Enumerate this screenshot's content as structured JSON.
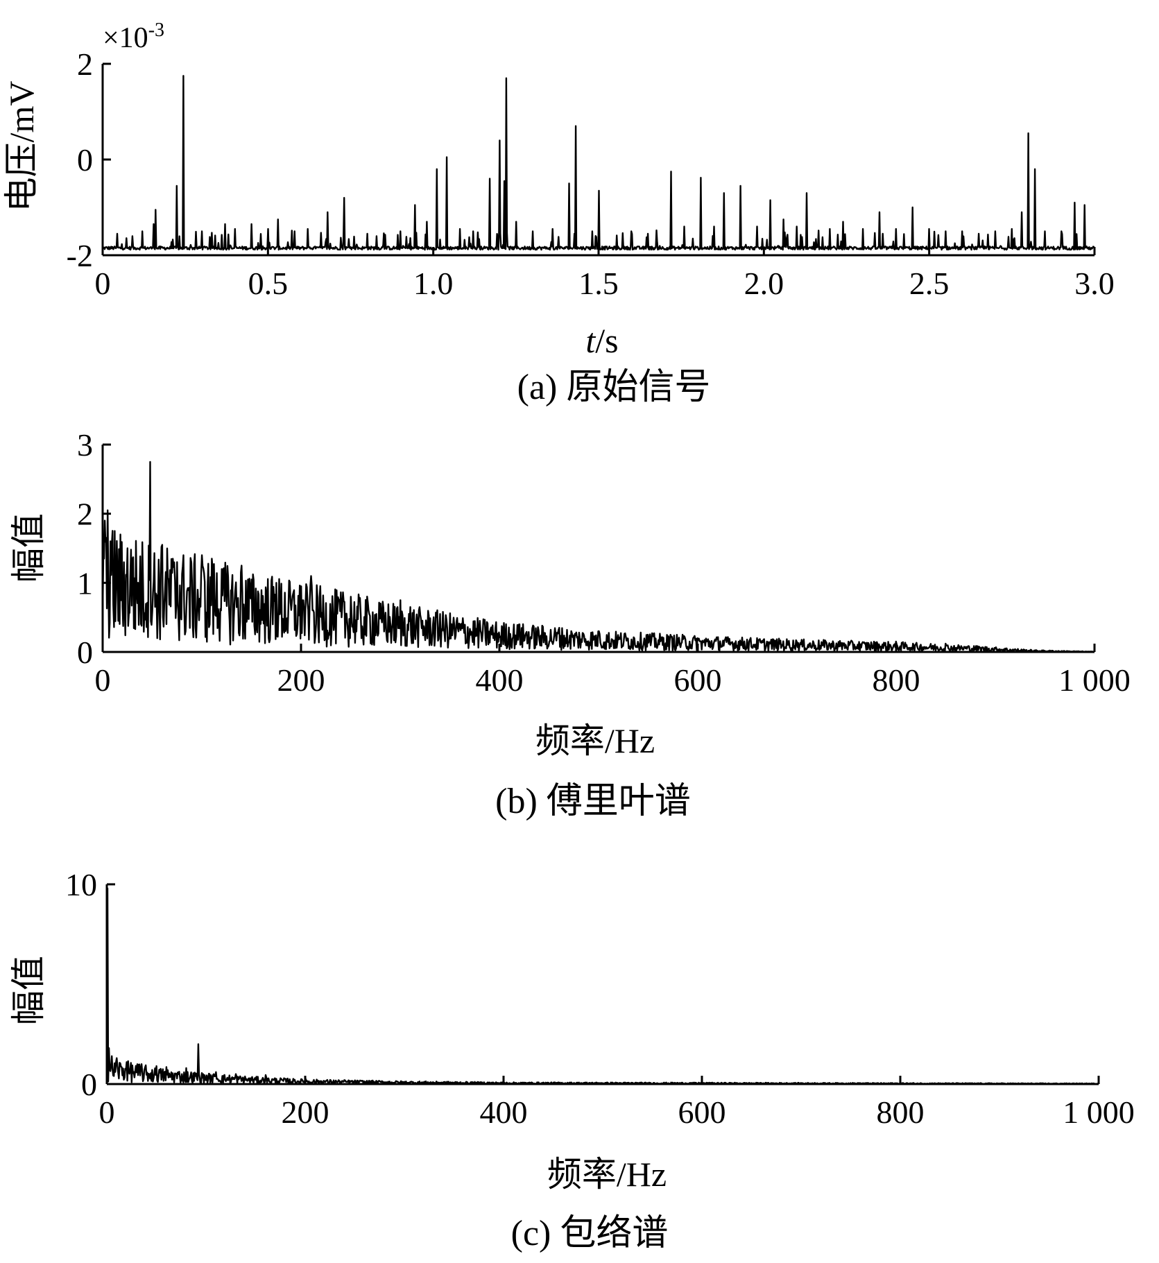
{
  "chart_data": [
    {
      "id": "a",
      "type": "line",
      "caption": "(a) 原始信号",
      "xlabel_italic": "t",
      "xlabel_rest": "/s",
      "ylabel": "电压/mV",
      "y_multiplier_base": "×10",
      "y_multiplier_exp": "-3",
      "xlim": [
        0,
        3.0
      ],
      "ylim": [
        -2,
        2
      ],
      "xticks": [
        0,
        0.5,
        1.0,
        1.5,
        2.0,
        2.5,
        3.0
      ],
      "xtick_labels": [
        "0",
        "0.5",
        "1.0",
        "1.5",
        "2.0",
        "2.5",
        "3.0"
      ],
      "yticks": [
        -2,
        0,
        2
      ],
      "ytick_labels": [
        "-2",
        "0",
        "2"
      ],
      "baseline": -1.85,
      "noise": 0.07,
      "peaks": [
        [
          0.045,
          -1.55
        ],
        [
          0.09,
          -1.6
        ],
        [
          0.12,
          -1.5
        ],
        [
          0.155,
          -1.35
        ],
        [
          0.16,
          -1.05
        ],
        [
          0.225,
          -0.55
        ],
        [
          0.245,
          1.75
        ],
        [
          0.3,
          -1.5
        ],
        [
          0.37,
          -1.35
        ],
        [
          0.4,
          -1.45
        ],
        [
          0.45,
          -1.35
        ],
        [
          0.5,
          -1.45
        ],
        [
          0.53,
          -1.25
        ],
        [
          0.58,
          -1.5
        ],
        [
          0.62,
          -1.45
        ],
        [
          0.68,
          -1.1
        ],
        [
          0.73,
          -0.8
        ],
        [
          0.8,
          -1.55
        ],
        [
          0.9,
          -1.5
        ],
        [
          0.945,
          -0.95
        ],
        [
          0.98,
          -1.3
        ],
        [
          1.01,
          -0.2
        ],
        [
          1.04,
          0.05
        ],
        [
          1.08,
          -1.45
        ],
        [
          1.12,
          -1.5
        ],
        [
          1.17,
          -0.4
        ],
        [
          1.2,
          0.4
        ],
        [
          1.215,
          -0.45
        ],
        [
          1.22,
          1.7
        ],
        [
          1.25,
          -1.3
        ],
        [
          1.3,
          -1.5
        ],
        [
          1.36,
          -1.45
        ],
        [
          1.41,
          -0.5
        ],
        [
          1.43,
          0.7
        ],
        [
          1.48,
          -1.5
        ],
        [
          1.5,
          -0.65
        ],
        [
          1.6,
          -1.5
        ],
        [
          1.65,
          -1.55
        ],
        [
          1.72,
          -0.25
        ],
        [
          1.76,
          -1.4
        ],
        [
          1.81,
          -0.38
        ],
        [
          1.85,
          -1.4
        ],
        [
          1.88,
          -0.7
        ],
        [
          1.93,
          -0.55
        ],
        [
          1.98,
          -1.4
        ],
        [
          2.02,
          -0.85
        ],
        [
          2.06,
          -1.25
        ],
        [
          2.1,
          -1.4
        ],
        [
          2.13,
          -0.7
        ],
        [
          2.2,
          -1.45
        ],
        [
          2.24,
          -1.3
        ],
        [
          2.3,
          -1.45
        ],
        [
          2.35,
          -1.1
        ],
        [
          2.4,
          -1.45
        ],
        [
          2.45,
          -1.0
        ],
        [
          2.5,
          -1.45
        ],
        [
          2.55,
          -1.5
        ],
        [
          2.6,
          -1.5
        ],
        [
          2.65,
          -1.55
        ],
        [
          2.7,
          -1.5
        ],
        [
          2.75,
          -1.45
        ],
        [
          2.78,
          -1.1
        ],
        [
          2.8,
          0.55
        ],
        [
          2.82,
          -0.2
        ],
        [
          2.85,
          -1.5
        ],
        [
          2.9,
          -1.5
        ],
        [
          2.94,
          -0.9
        ],
        [
          2.97,
          -0.95
        ]
      ]
    },
    {
      "id": "b",
      "type": "line",
      "caption": "(b) 傅里叶谱",
      "xlabel": "频率/Hz",
      "ylabel": "幅值",
      "xlim": [
        0,
        1000
      ],
      "ylim": [
        0,
        3
      ],
      "xticks": [
        0,
        200,
        400,
        600,
        800,
        1000
      ],
      "xtick_labels": [
        "0",
        "200",
        "400",
        "600",
        "800",
        "1 000"
      ],
      "yticks": [
        0,
        1,
        2,
        3
      ],
      "ytick_labels": [
        "0",
        "1",
        "2",
        "3"
      ],
      "envelope": [
        [
          0,
          1.0
        ],
        [
          100,
          0.75
        ],
        [
          200,
          0.55
        ],
        [
          300,
          0.38
        ],
        [
          400,
          0.24
        ],
        [
          500,
          0.17
        ],
        [
          600,
          0.13
        ],
        [
          700,
          0.1
        ],
        [
          800,
          0.08
        ],
        [
          880,
          0.05
        ],
        [
          940,
          0.015
        ],
        [
          1000,
          0.003
        ]
      ],
      "peaks": [
        [
          2,
          1.9
        ],
        [
          5,
          2.05
        ],
        [
          8,
          1.6
        ],
        [
          12,
          1.75
        ],
        [
          25,
          1.5
        ],
        [
          30,
          1.35
        ],
        [
          48,
          2.75
        ],
        [
          60,
          1.55
        ],
        [
          75,
          1.3
        ],
        [
          100,
          1.4
        ],
        [
          110,
          1.35
        ],
        [
          120,
          1.2
        ],
        [
          140,
          1.25
        ],
        [
          150,
          1.05
        ],
        [
          175,
          1.0
        ],
        [
          200,
          0.95
        ],
        [
          210,
          1.1
        ],
        [
          250,
          0.8
        ],
        [
          280,
          0.7
        ],
        [
          300,
          0.75
        ],
        [
          310,
          0.65
        ],
        [
          340,
          0.55
        ],
        [
          380,
          0.45
        ],
        [
          420,
          0.4
        ],
        [
          460,
          0.35
        ],
        [
          500,
          0.3
        ],
        [
          550,
          0.25
        ],
        [
          600,
          0.2
        ],
        [
          650,
          0.18
        ],
        [
          700,
          0.15
        ],
        [
          800,
          0.15
        ],
        [
          850,
          0.12
        ]
      ]
    },
    {
      "id": "c",
      "type": "line",
      "caption": "(c) 包络谱",
      "xlabel": "频率/Hz",
      "ylabel": "幅值",
      "xlim": [
        0,
        1000
      ],
      "ylim": [
        0,
        10
      ],
      "xticks": [
        0,
        200,
        400,
        600,
        800,
        1000
      ],
      "xtick_labels": [
        "0",
        "200",
        "400",
        "600",
        "800",
        "1 000"
      ],
      "yticks": [
        0,
        10
      ],
      "ytick_labels": [
        "0",
        "10"
      ],
      "envelope": [
        [
          0,
          0.75
        ],
        [
          50,
          0.45
        ],
        [
          100,
          0.3
        ],
        [
          150,
          0.2
        ],
        [
          200,
          0.13
        ],
        [
          300,
          0.08
        ],
        [
          400,
          0.05
        ],
        [
          600,
          0.04
        ],
        [
          800,
          0.03
        ],
        [
          1000,
          0.02
        ]
      ],
      "peaks": [
        [
          0.5,
          9.8
        ],
        [
          2,
          1.8
        ],
        [
          5,
          1.4
        ],
        [
          10,
          1.3
        ],
        [
          20,
          1.1
        ],
        [
          35,
          1.0
        ],
        [
          50,
          0.9
        ],
        [
          60,
          0.85
        ],
        [
          80,
          0.8
        ],
        [
          92,
          2.0
        ],
        [
          110,
          0.6
        ],
        [
          130,
          0.5
        ],
        [
          160,
          0.45
        ],
        [
          200,
          0.35
        ]
      ]
    }
  ]
}
